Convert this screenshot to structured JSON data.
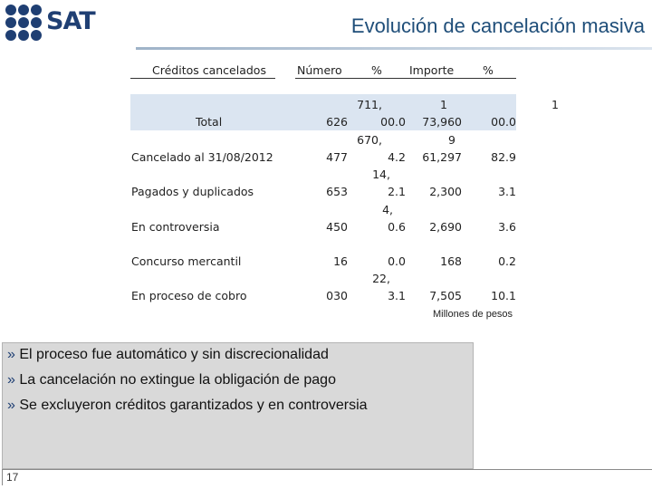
{
  "logo": {
    "text": "SAT"
  },
  "title": "Evolución de cancelación masiva",
  "table": {
    "headers": [
      "Créditos cancelados",
      "Número",
      "%",
      "Importe",
      "%"
    ],
    "total": {
      "label": "Total",
      "numero": "626",
      "pct_a": "711,",
      "pct_b": "00.0",
      "imp_a": "1",
      "imp_b": "73,960",
      "pct2": "00.0",
      "extra": "1"
    },
    "rows": [
      {
        "label": "Cancelado al 31/08/2012",
        "numero": "477",
        "pct_a": "670,",
        "pct_b": "4.2",
        "imp_a": "9",
        "imp_b": "61,297",
        "pct2": "82.9"
      },
      {
        "label": "Pagados y duplicados",
        "numero": "653",
        "pct_a": "14,",
        "pct_b": "2.1",
        "imp_b": "2,300",
        "pct2": "3.1"
      },
      {
        "label": "En controversia",
        "numero": "450",
        "pct_a": "4,",
        "pct_b": "0.6",
        "imp_b": "2,690",
        "pct2": "3.6"
      },
      {
        "label": "Concurso mercantil",
        "numero": "16",
        "pct_b": "0.0",
        "imp_b": "168",
        "pct2": "0.2"
      },
      {
        "label": "En proceso de cobro",
        "numero": "030",
        "pct_a": "22,",
        "pct_b": "3.1",
        "imp_b": "7,505",
        "pct2": "10.1"
      }
    ],
    "note": "Millones de pesos"
  },
  "bullets": {
    "marker": "»",
    "items": [
      "El proceso fue automático y sin discrecionalidad",
      "La cancelación no extingue la obligación de pago",
      "Se excluyeron créditos garantizados y en controversia"
    ]
  },
  "footer": {
    "page": "17"
  }
}
